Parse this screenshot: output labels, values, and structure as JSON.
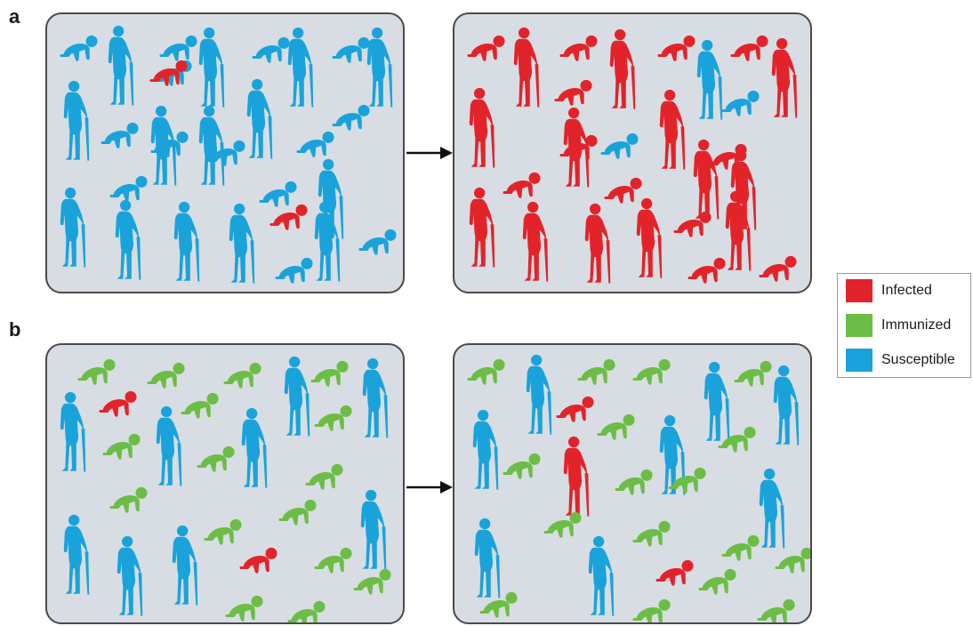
{
  "panels": {
    "a_label": "a",
    "b_label": "b"
  },
  "legend": {
    "items": [
      {
        "label": "Infected",
        "color": "#e3232a"
      },
      {
        "label": "Immunized",
        "color": "#6cbd45"
      },
      {
        "label": "Susceptible",
        "color": "#1aa3db"
      }
    ]
  },
  "colors": {
    "infected": "#e3232a",
    "immunized": "#6cbd45",
    "susceptible": "#1aa3db",
    "panel_background": "#d7dde3",
    "panel_border": "#4a4a4a",
    "arrow": "#111111"
  },
  "scenes": {
    "a_before": [
      {
        "kind": "baby",
        "status": "susceptible"
      },
      {
        "kind": "elder",
        "status": "susceptible"
      },
      {
        "kind": "baby",
        "status": "susceptible"
      },
      {
        "kind": "elder",
        "status": "susceptible"
      },
      {
        "kind": "baby",
        "status": "susceptible"
      },
      {
        "kind": "elder",
        "status": "susceptible"
      },
      {
        "kind": "baby",
        "status": "susceptible"
      },
      {
        "kind": "elder",
        "status": "susceptible"
      },
      {
        "kind": "baby",
        "status": "susceptible"
      },
      {
        "kind": "baby",
        "status": "infected"
      },
      {
        "kind": "baby",
        "status": "susceptible"
      },
      {
        "kind": "elder",
        "status": "susceptible"
      },
      {
        "kind": "elder",
        "status": "susceptible"
      },
      {
        "kind": "baby",
        "status": "susceptible"
      },
      {
        "kind": "elder",
        "status": "susceptible"
      },
      {
        "kind": "baby",
        "status": "susceptible"
      },
      {
        "kind": "elder",
        "status": "susceptible"
      },
      {
        "kind": "baby",
        "status": "susceptible"
      },
      {
        "kind": "baby",
        "status": "susceptible"
      },
      {
        "kind": "elder",
        "status": "susceptible"
      },
      {
        "kind": "baby",
        "status": "susceptible"
      },
      {
        "kind": "baby",
        "status": "susceptible"
      },
      {
        "kind": "elder",
        "status": "susceptible"
      },
      {
        "kind": "elder",
        "status": "susceptible"
      },
      {
        "kind": "elder",
        "status": "susceptible"
      },
      {
        "kind": "elder",
        "status": "susceptible"
      },
      {
        "kind": "baby",
        "status": "infected"
      },
      {
        "kind": "elder",
        "status": "susceptible"
      },
      {
        "kind": "baby",
        "status": "susceptible"
      },
      {
        "kind": "baby",
        "status": "susceptible"
      }
    ],
    "a_after": [
      {
        "kind": "baby",
        "status": "infected"
      },
      {
        "kind": "elder",
        "status": "infected"
      },
      {
        "kind": "baby",
        "status": "infected"
      },
      {
        "kind": "elder",
        "status": "infected"
      },
      {
        "kind": "baby",
        "status": "infected"
      },
      {
        "kind": "elder",
        "status": "susceptible"
      },
      {
        "kind": "baby",
        "status": "infected"
      },
      {
        "kind": "elder",
        "status": "infected"
      },
      {
        "kind": "elder",
        "status": "infected"
      },
      {
        "kind": "baby",
        "status": "infected"
      },
      {
        "kind": "elder",
        "status": "infected"
      },
      {
        "kind": "baby",
        "status": "susceptible"
      },
      {
        "kind": "elder",
        "status": "infected"
      },
      {
        "kind": "baby",
        "status": "infected"
      },
      {
        "kind": "baby",
        "status": "susceptible"
      },
      {
        "kind": "elder",
        "status": "infected"
      },
      {
        "kind": "baby",
        "status": "infected"
      },
      {
        "kind": "baby",
        "status": "infected"
      },
      {
        "kind": "baby",
        "status": "infected"
      },
      {
        "kind": "elder",
        "status": "infected"
      },
      {
        "kind": "elder",
        "status": "infected"
      },
      {
        "kind": "elder",
        "status": "infected"
      },
      {
        "kind": "elder",
        "status": "infected"
      },
      {
        "kind": "elder",
        "status": "infected"
      },
      {
        "kind": "baby",
        "status": "infected"
      },
      {
        "kind": "elder",
        "status": "infected"
      },
      {
        "kind": "baby",
        "status": "infected"
      },
      {
        "kind": "baby",
        "status": "infected"
      }
    ],
    "b_before": [
      {
        "kind": "baby",
        "status": "immunized"
      },
      {
        "kind": "baby",
        "status": "immunized"
      },
      {
        "kind": "baby",
        "status": "immunized"
      },
      {
        "kind": "elder",
        "status": "susceptible"
      },
      {
        "kind": "baby",
        "status": "immunized"
      },
      {
        "kind": "elder",
        "status": "susceptible"
      },
      {
        "kind": "baby",
        "status": "infected"
      },
      {
        "kind": "baby",
        "status": "immunized"
      },
      {
        "kind": "elder",
        "status": "susceptible"
      },
      {
        "kind": "elder",
        "status": "susceptible"
      },
      {
        "kind": "baby",
        "status": "immunized"
      },
      {
        "kind": "baby",
        "status": "immunized"
      },
      {
        "kind": "baby",
        "status": "immunized"
      },
      {
        "kind": "elder",
        "status": "susceptible"
      },
      {
        "kind": "baby",
        "status": "immunized"
      },
      {
        "kind": "baby",
        "status": "immunized"
      },
      {
        "kind": "elder",
        "status": "susceptible"
      },
      {
        "kind": "baby",
        "status": "immunized"
      },
      {
        "kind": "elder",
        "status": "susceptible"
      },
      {
        "kind": "elder",
        "status": "susceptible"
      },
      {
        "kind": "elder",
        "status": "susceptible"
      },
      {
        "kind": "baby",
        "status": "immunized"
      },
      {
        "kind": "baby",
        "status": "infected"
      },
      {
        "kind": "baby",
        "status": "immunized"
      },
      {
        "kind": "baby",
        "status": "immunized"
      },
      {
        "kind": "baby",
        "status": "immunized"
      },
      {
        "kind": "baby",
        "status": "immunized"
      }
    ],
    "b_after": [
      {
        "kind": "baby",
        "status": "immunized"
      },
      {
        "kind": "elder",
        "status": "susceptible"
      },
      {
        "kind": "baby",
        "status": "immunized"
      },
      {
        "kind": "baby",
        "status": "immunized"
      },
      {
        "kind": "elder",
        "status": "susceptible"
      },
      {
        "kind": "baby",
        "status": "immunized"
      },
      {
        "kind": "elder",
        "status": "susceptible"
      },
      {
        "kind": "baby",
        "status": "infected"
      },
      {
        "kind": "elder",
        "status": "susceptible"
      },
      {
        "kind": "baby",
        "status": "immunized"
      },
      {
        "kind": "baby",
        "status": "immunized"
      },
      {
        "kind": "elder",
        "status": "infected"
      },
      {
        "kind": "elder",
        "status": "susceptible"
      },
      {
        "kind": "baby",
        "status": "immunized"
      },
      {
        "kind": "baby",
        "status": "immunized"
      },
      {
        "kind": "baby",
        "status": "immunized"
      },
      {
        "kind": "baby",
        "status": "immunized"
      },
      {
        "kind": "baby",
        "status": "immunized"
      },
      {
        "kind": "elder",
        "status": "susceptible"
      },
      {
        "kind": "elder",
        "status": "susceptible"
      },
      {
        "kind": "baby",
        "status": "immunized"
      },
      {
        "kind": "elder",
        "status": "susceptible"
      },
      {
        "kind": "baby",
        "status": "immunized"
      },
      {
        "kind": "baby",
        "status": "infected"
      },
      {
        "kind": "baby",
        "status": "immunized"
      },
      {
        "kind": "baby",
        "status": "immunized"
      },
      {
        "kind": "baby",
        "status": "immunized"
      },
      {
        "kind": "baby",
        "status": "immunized"
      }
    ]
  }
}
